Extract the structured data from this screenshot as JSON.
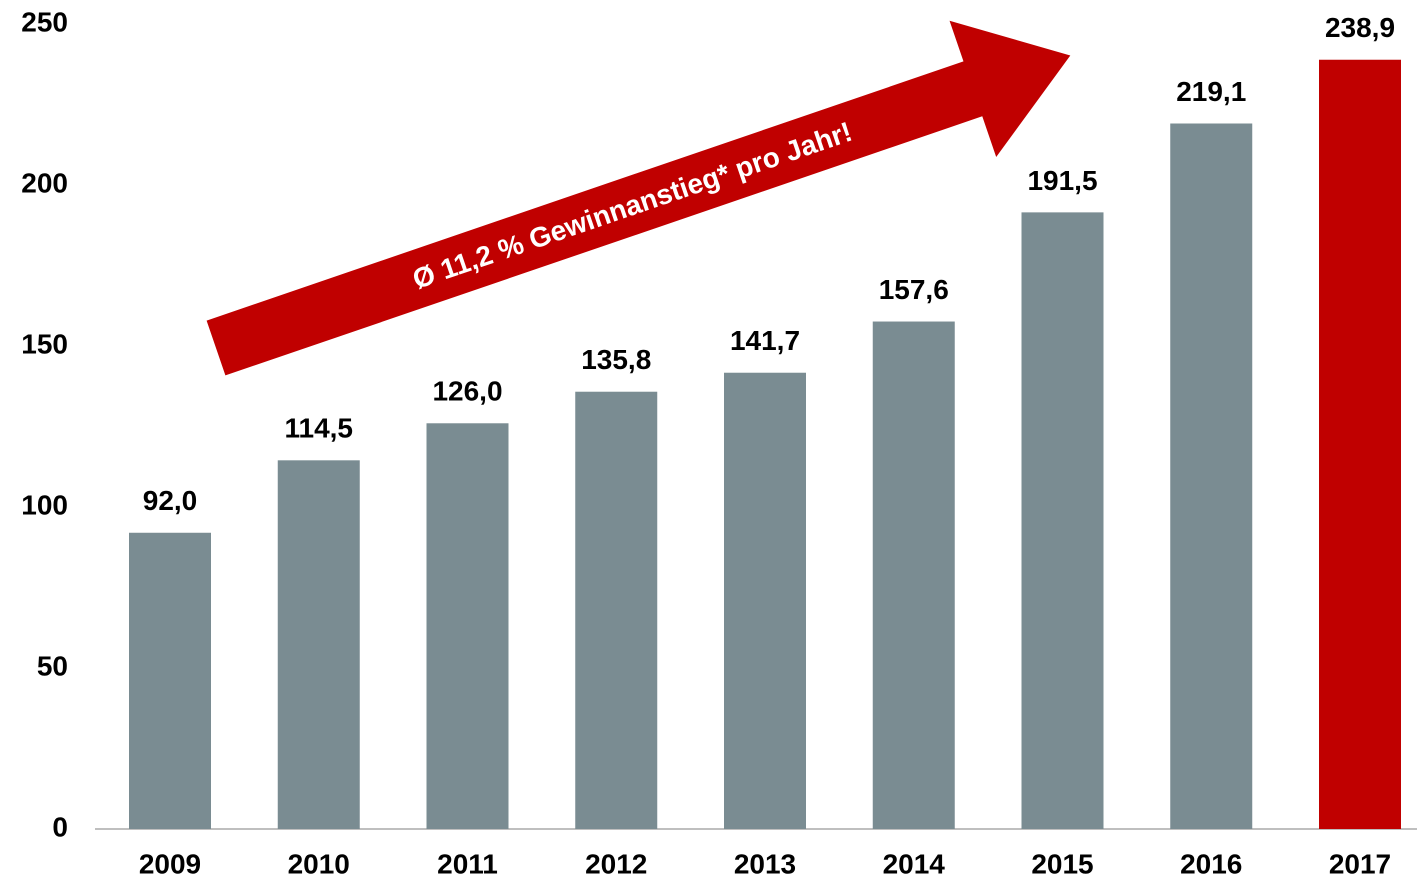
{
  "chart_data": {
    "type": "bar",
    "annotation": "Ø 11,2 % Gewinnanstieg* pro Jahr!",
    "categories": [
      "2009",
      "2010",
      "2011",
      "2012",
      "2013",
      "2014",
      "2015",
      "2016",
      "2017"
    ],
    "values": [
      92.0,
      114.5,
      126.0,
      135.8,
      141.7,
      157.6,
      191.5,
      219.1,
      238.9
    ],
    "value_labels": [
      "92,0",
      "114,5",
      "126,0",
      "135,8",
      "141,7",
      "157,6",
      "191,5",
      "219,1",
      "238,9"
    ],
    "colors": [
      "#7a8c92",
      "#7a8c92",
      "#7a8c92",
      "#7a8c92",
      "#7a8c92",
      "#7a8c92",
      "#7a8c92",
      "#7a8c92",
      "#c00000"
    ],
    "ylim": [
      0,
      250
    ],
    "yticks": [
      0,
      50,
      100,
      150,
      200,
      250
    ],
    "grid": false
  }
}
